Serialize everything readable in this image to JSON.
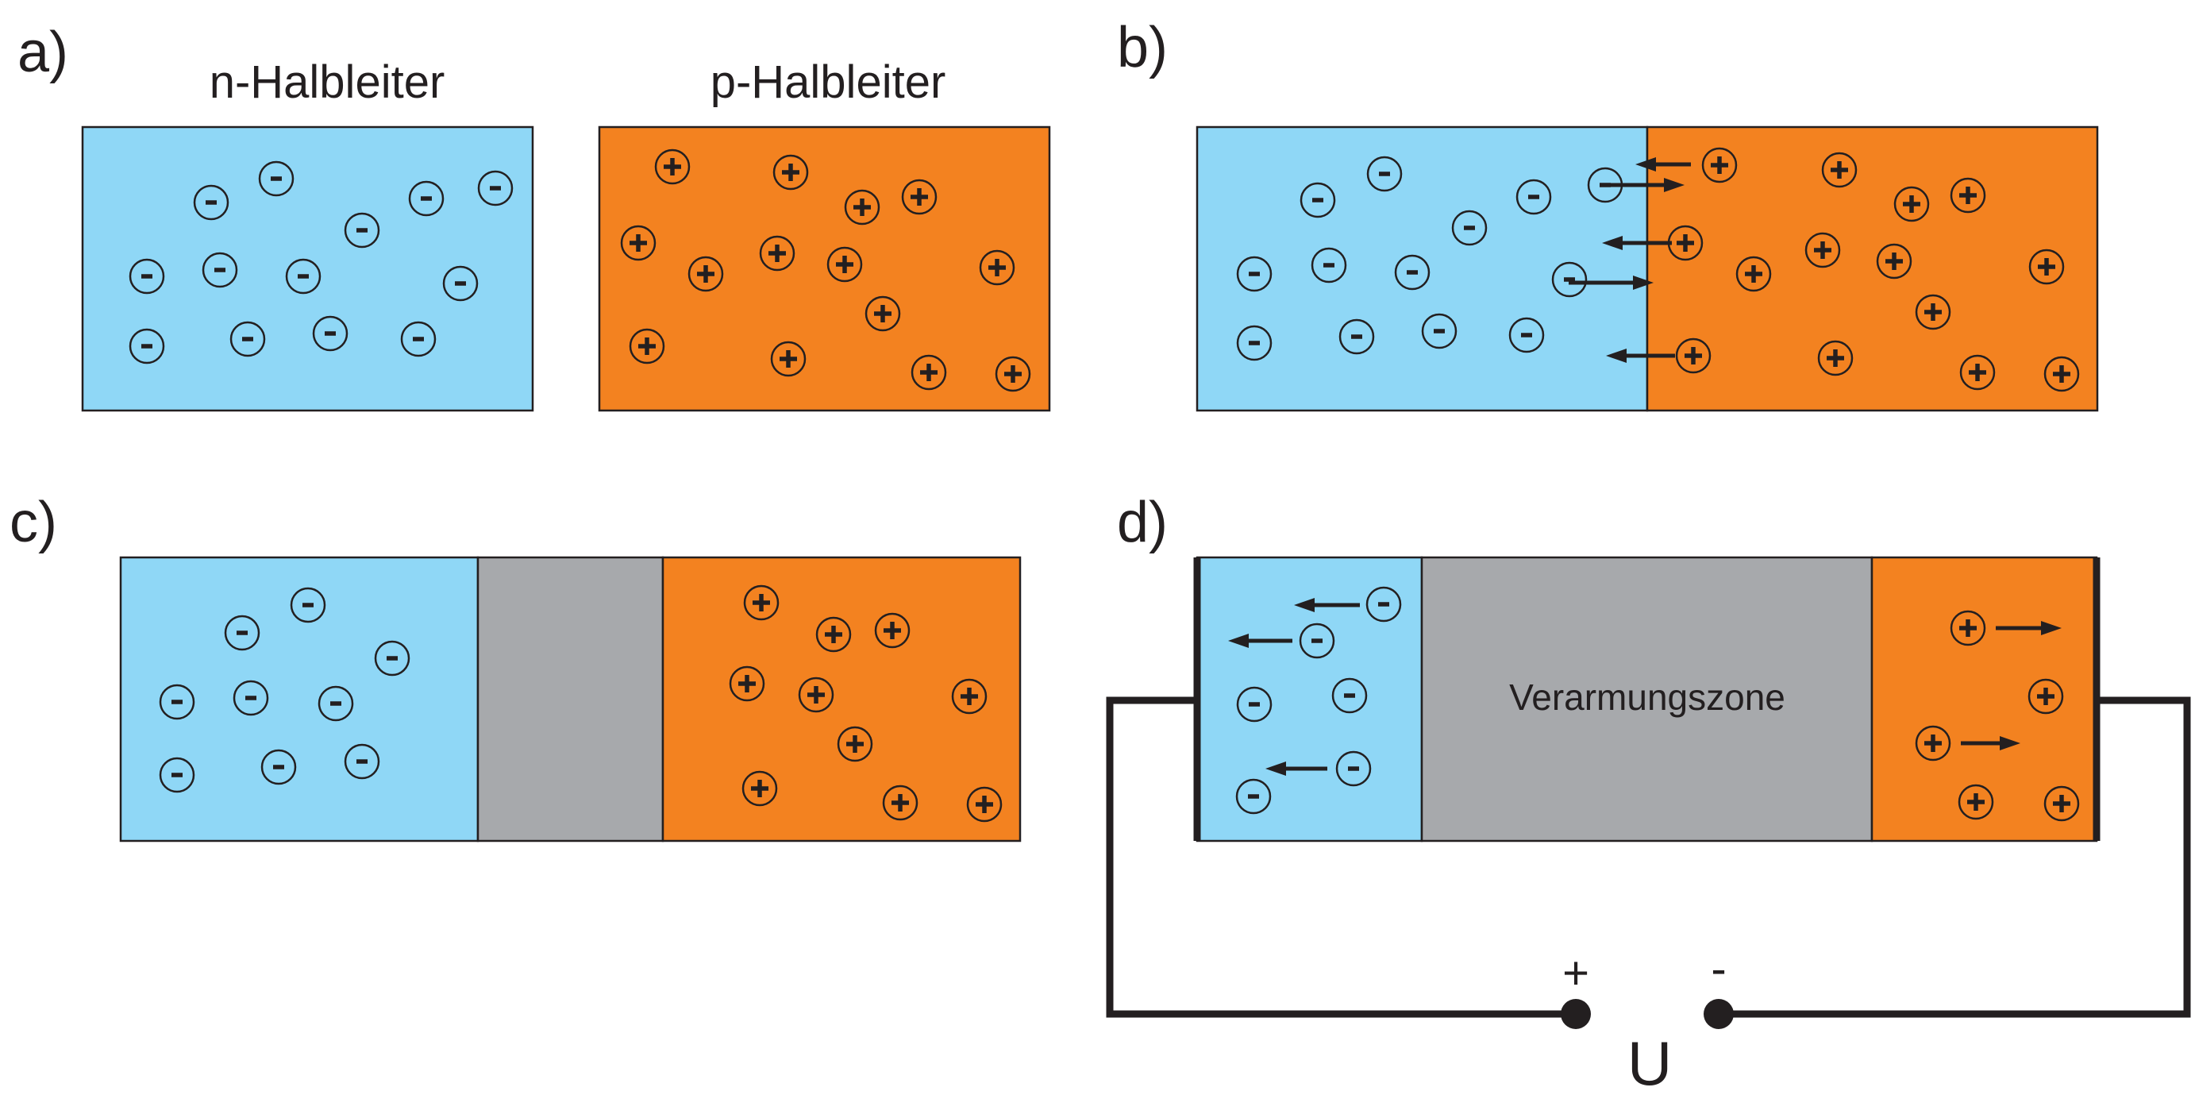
{
  "colors": {
    "n_region": "#8fd7f6",
    "p_region": "#f38220",
    "depletion": "#a7a9ac",
    "ink": "#231f20",
    "background": "#ffffff"
  },
  "panels": {
    "a": {
      "label": "a)",
      "n_title": "n-Halbleiter",
      "p_title": "p-Halbleiter"
    },
    "b": {
      "label": "b)"
    },
    "c": {
      "label": "c)"
    },
    "d": {
      "label": "d)",
      "depletion_label": "Verarmungszone",
      "terminal_plus": "+",
      "terminal_minus": "-",
      "voltage_label": "U"
    }
  }
}
